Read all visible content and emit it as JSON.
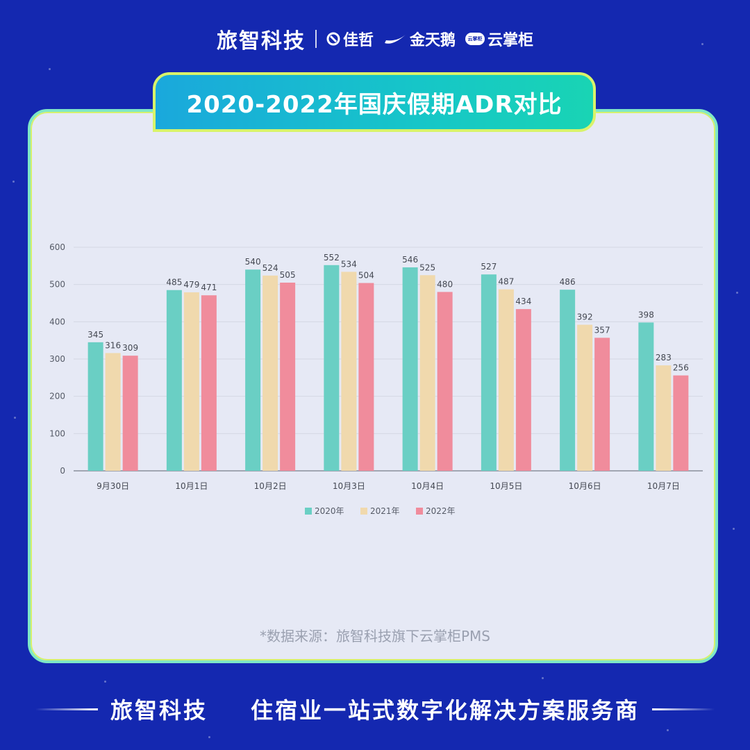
{
  "header": {
    "brand": "旅智科技",
    "partners": [
      "佳哲",
      "金天鹅",
      "云掌柜"
    ],
    "cloud_badge": "云掌柜"
  },
  "title": "2020-2022年国庆假期ADR对比",
  "chart_data": {
    "type": "bar",
    "categories": [
      "9月30日",
      "10月1日",
      "10月2日",
      "10月3日",
      "10月4日",
      "10月5日",
      "10月6日",
      "10月7日"
    ],
    "series": [
      {
        "name": "2020年",
        "color": "#6acfc4",
        "values": [
          345,
          485,
          540,
          552,
          546,
          527,
          486,
          398
        ]
      },
      {
        "name": "2021年",
        "color": "#f0d9ad",
        "values": [
          316,
          479,
          524,
          534,
          525,
          487,
          392,
          283
        ]
      },
      {
        "name": "2022年",
        "color": "#f08c9c",
        "values": [
          309,
          471,
          505,
          504,
          480,
          434,
          357,
          256
        ]
      }
    ],
    "ylim": [
      0,
      600
    ],
    "yticks": [
      0,
      100,
      200,
      300,
      400,
      500,
      600
    ],
    "grid": true,
    "legend": "bottom"
  },
  "source_note": "*数据来源：旅智科技旗下云掌柜PMS",
  "footer": {
    "brand": "旅智科技",
    "slogan": "住宿业一站式数字化解决方案服务商"
  }
}
